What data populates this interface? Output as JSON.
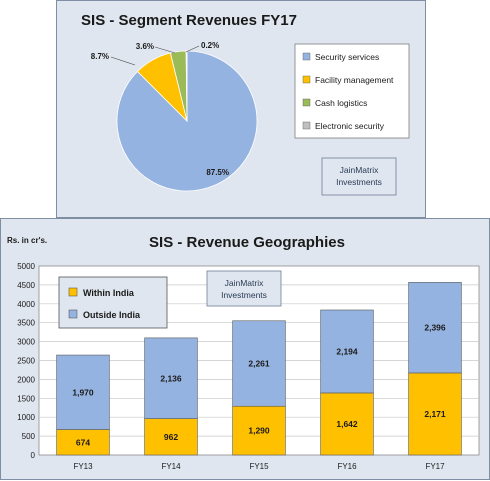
{
  "colors": {
    "security": "#95b3e0",
    "facility": "#ffc000",
    "cash": "#9bbb59",
    "electronic": "#c0c0c0",
    "outside": "#95b3e0",
    "within": "#ffc000"
  },
  "chart_data": [
    {
      "type": "pie",
      "title": "SIS - Segment Revenues FY17",
      "legend_position": "right",
      "slices": [
        {
          "label": "Security services",
          "value": 87.5,
          "display": "87.5%",
          "color": "#95b3e0"
        },
        {
          "label": "Facility management",
          "value": 8.7,
          "display": "8.7%",
          "color": "#ffc000"
        },
        {
          "label": "Cash logistics",
          "value": 3.6,
          "display": "3.6%",
          "color": "#9bbb59"
        },
        {
          "label": "Electronic security",
          "value": 0.2,
          "display": "0.2%",
          "color": "#c0c0c0"
        }
      ],
      "watermark": [
        "JainMatrix",
        "Investments"
      ]
    },
    {
      "type": "bar",
      "stacked": true,
      "title": "SIS - Revenue Geographies",
      "ylabel": "Rs. in cr's.",
      "ylim": [
        0,
        5000
      ],
      "yticks": [
        0,
        500,
        1000,
        1500,
        2000,
        2500,
        3000,
        3500,
        4000,
        4500,
        5000
      ],
      "grid": true,
      "legend_position": "top-left",
      "categories": [
        "FY13",
        "FY14",
        "FY15",
        "FY16",
        "FY17"
      ],
      "series": [
        {
          "name": "Within India",
          "values": [
            674,
            962,
            1290,
            1642,
            2171
          ],
          "labels": [
            "674",
            "962",
            "1,290",
            "1,642",
            "2,171"
          ],
          "color": "#ffc000"
        },
        {
          "name": "Outside India",
          "values": [
            1970,
            2136,
            2261,
            2194,
            2396
          ],
          "labels": [
            "1,970",
            "2,136",
            "2,261",
            "2,194",
            "2,396"
          ],
          "color": "#95b3e0"
        }
      ],
      "watermark": [
        "JainMatrix",
        "Investments"
      ]
    }
  ]
}
